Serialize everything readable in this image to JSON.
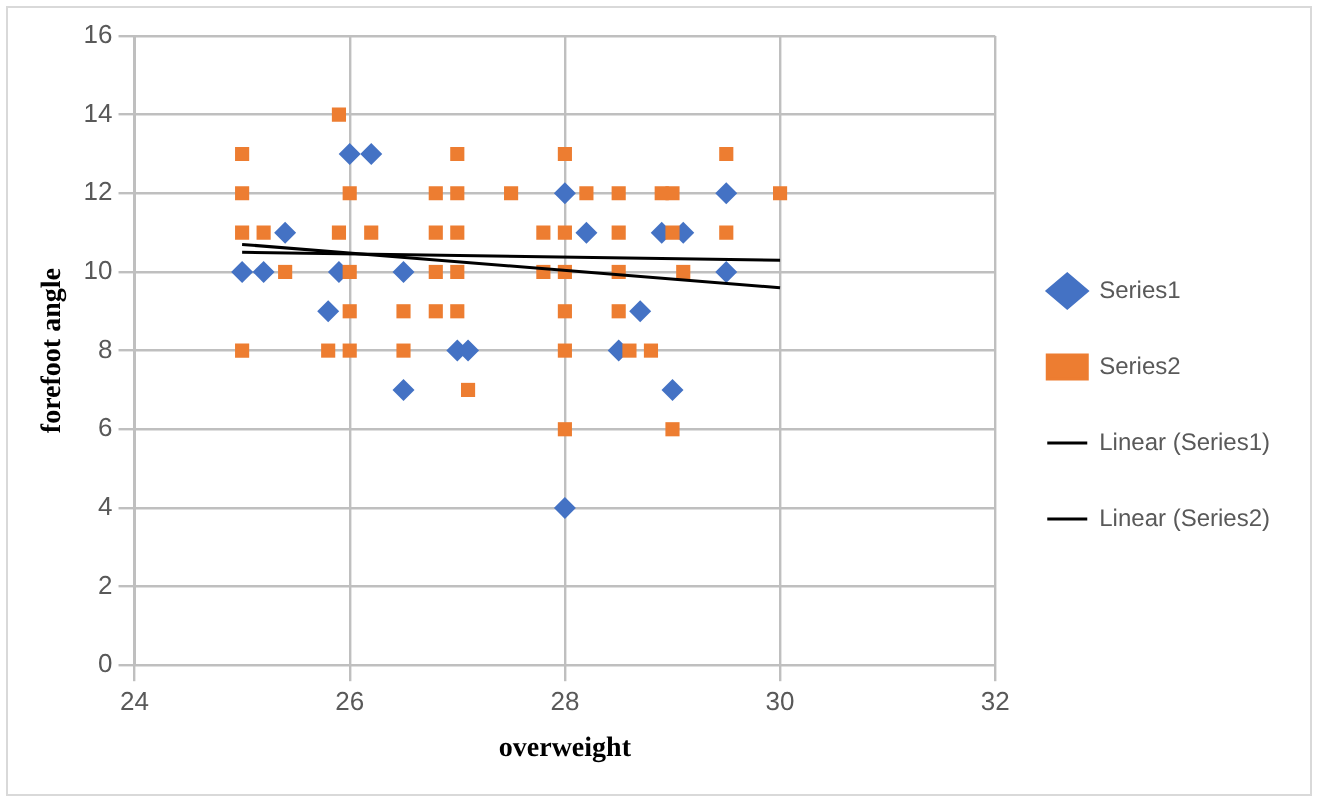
{
  "chart_data": {
    "type": "scatter",
    "xlabel": "overweight",
    "ylabel": "forefoot angle",
    "xlim": [
      24,
      32
    ],
    "xticks": [
      24,
      26,
      28,
      30,
      32
    ],
    "ylim": [
      0,
      16
    ],
    "yticks": [
      0,
      2,
      4,
      6,
      8,
      10,
      12,
      14,
      16
    ],
    "grid": true,
    "legend": "right",
    "series": [
      {
        "name": "Series1",
        "type": "scatter",
        "marker": "diamond",
        "color": "#4472c4",
        "x": [
          25,
          25.2,
          25.4,
          25.9,
          25.8,
          26,
          26.2,
          26.5,
          26.5,
          27,
          27.1,
          28,
          28,
          28.2,
          28.7,
          28.5,
          28.9,
          29.1,
          29.5,
          29.5,
          29
        ],
        "values": [
          10,
          10,
          11,
          10,
          9,
          13,
          13,
          10,
          7,
          8,
          8,
          12,
          4,
          11,
          9,
          8,
          11,
          11,
          12,
          10,
          7
        ]
      },
      {
        "name": "Series2",
        "type": "scatter",
        "marker": "square",
        "color": "#ed7d31",
        "x": [
          25,
          25,
          25,
          25.2,
          25,
          25.4,
          25.9,
          26,
          25.9,
          26.2,
          26,
          26,
          25.8,
          26,
          26.5,
          26.5,
          26.8,
          27,
          27,
          26.8,
          27,
          26.8,
          27,
          26.8,
          27,
          27.1,
          27.5,
          28,
          29.5,
          28.2,
          28.5,
          28.9,
          29,
          30,
          27.8,
          28,
          28.5,
          29,
          29.5,
          27.8,
          28,
          28.5,
          29.1,
          28,
          28.5,
          28,
          28.6,
          28.8,
          28,
          29
        ],
        "values": [
          13,
          12,
          11,
          11,
          8,
          10,
          14,
          12,
          11,
          11,
          10,
          9,
          8,
          8,
          9,
          8,
          12,
          12,
          13,
          11,
          11,
          10,
          10,
          9,
          9,
          7,
          12,
          13,
          13,
          12,
          12,
          12,
          12,
          12,
          11,
          11,
          11,
          11,
          11,
          10,
          10,
          10,
          10,
          9,
          9,
          8,
          8,
          8,
          6,
          6
        ]
      },
      {
        "name": "Linear (Series1)",
        "type": "line",
        "marker": "none",
        "color": "#000000",
        "x": [
          25,
          30
        ],
        "values": [
          10.7,
          9.6
        ]
      },
      {
        "name": "Linear (Series2)",
        "type": "line",
        "marker": "none",
        "color": "#000000",
        "x": [
          25,
          30
        ],
        "values": [
          10.5,
          10.3
        ]
      }
    ]
  }
}
